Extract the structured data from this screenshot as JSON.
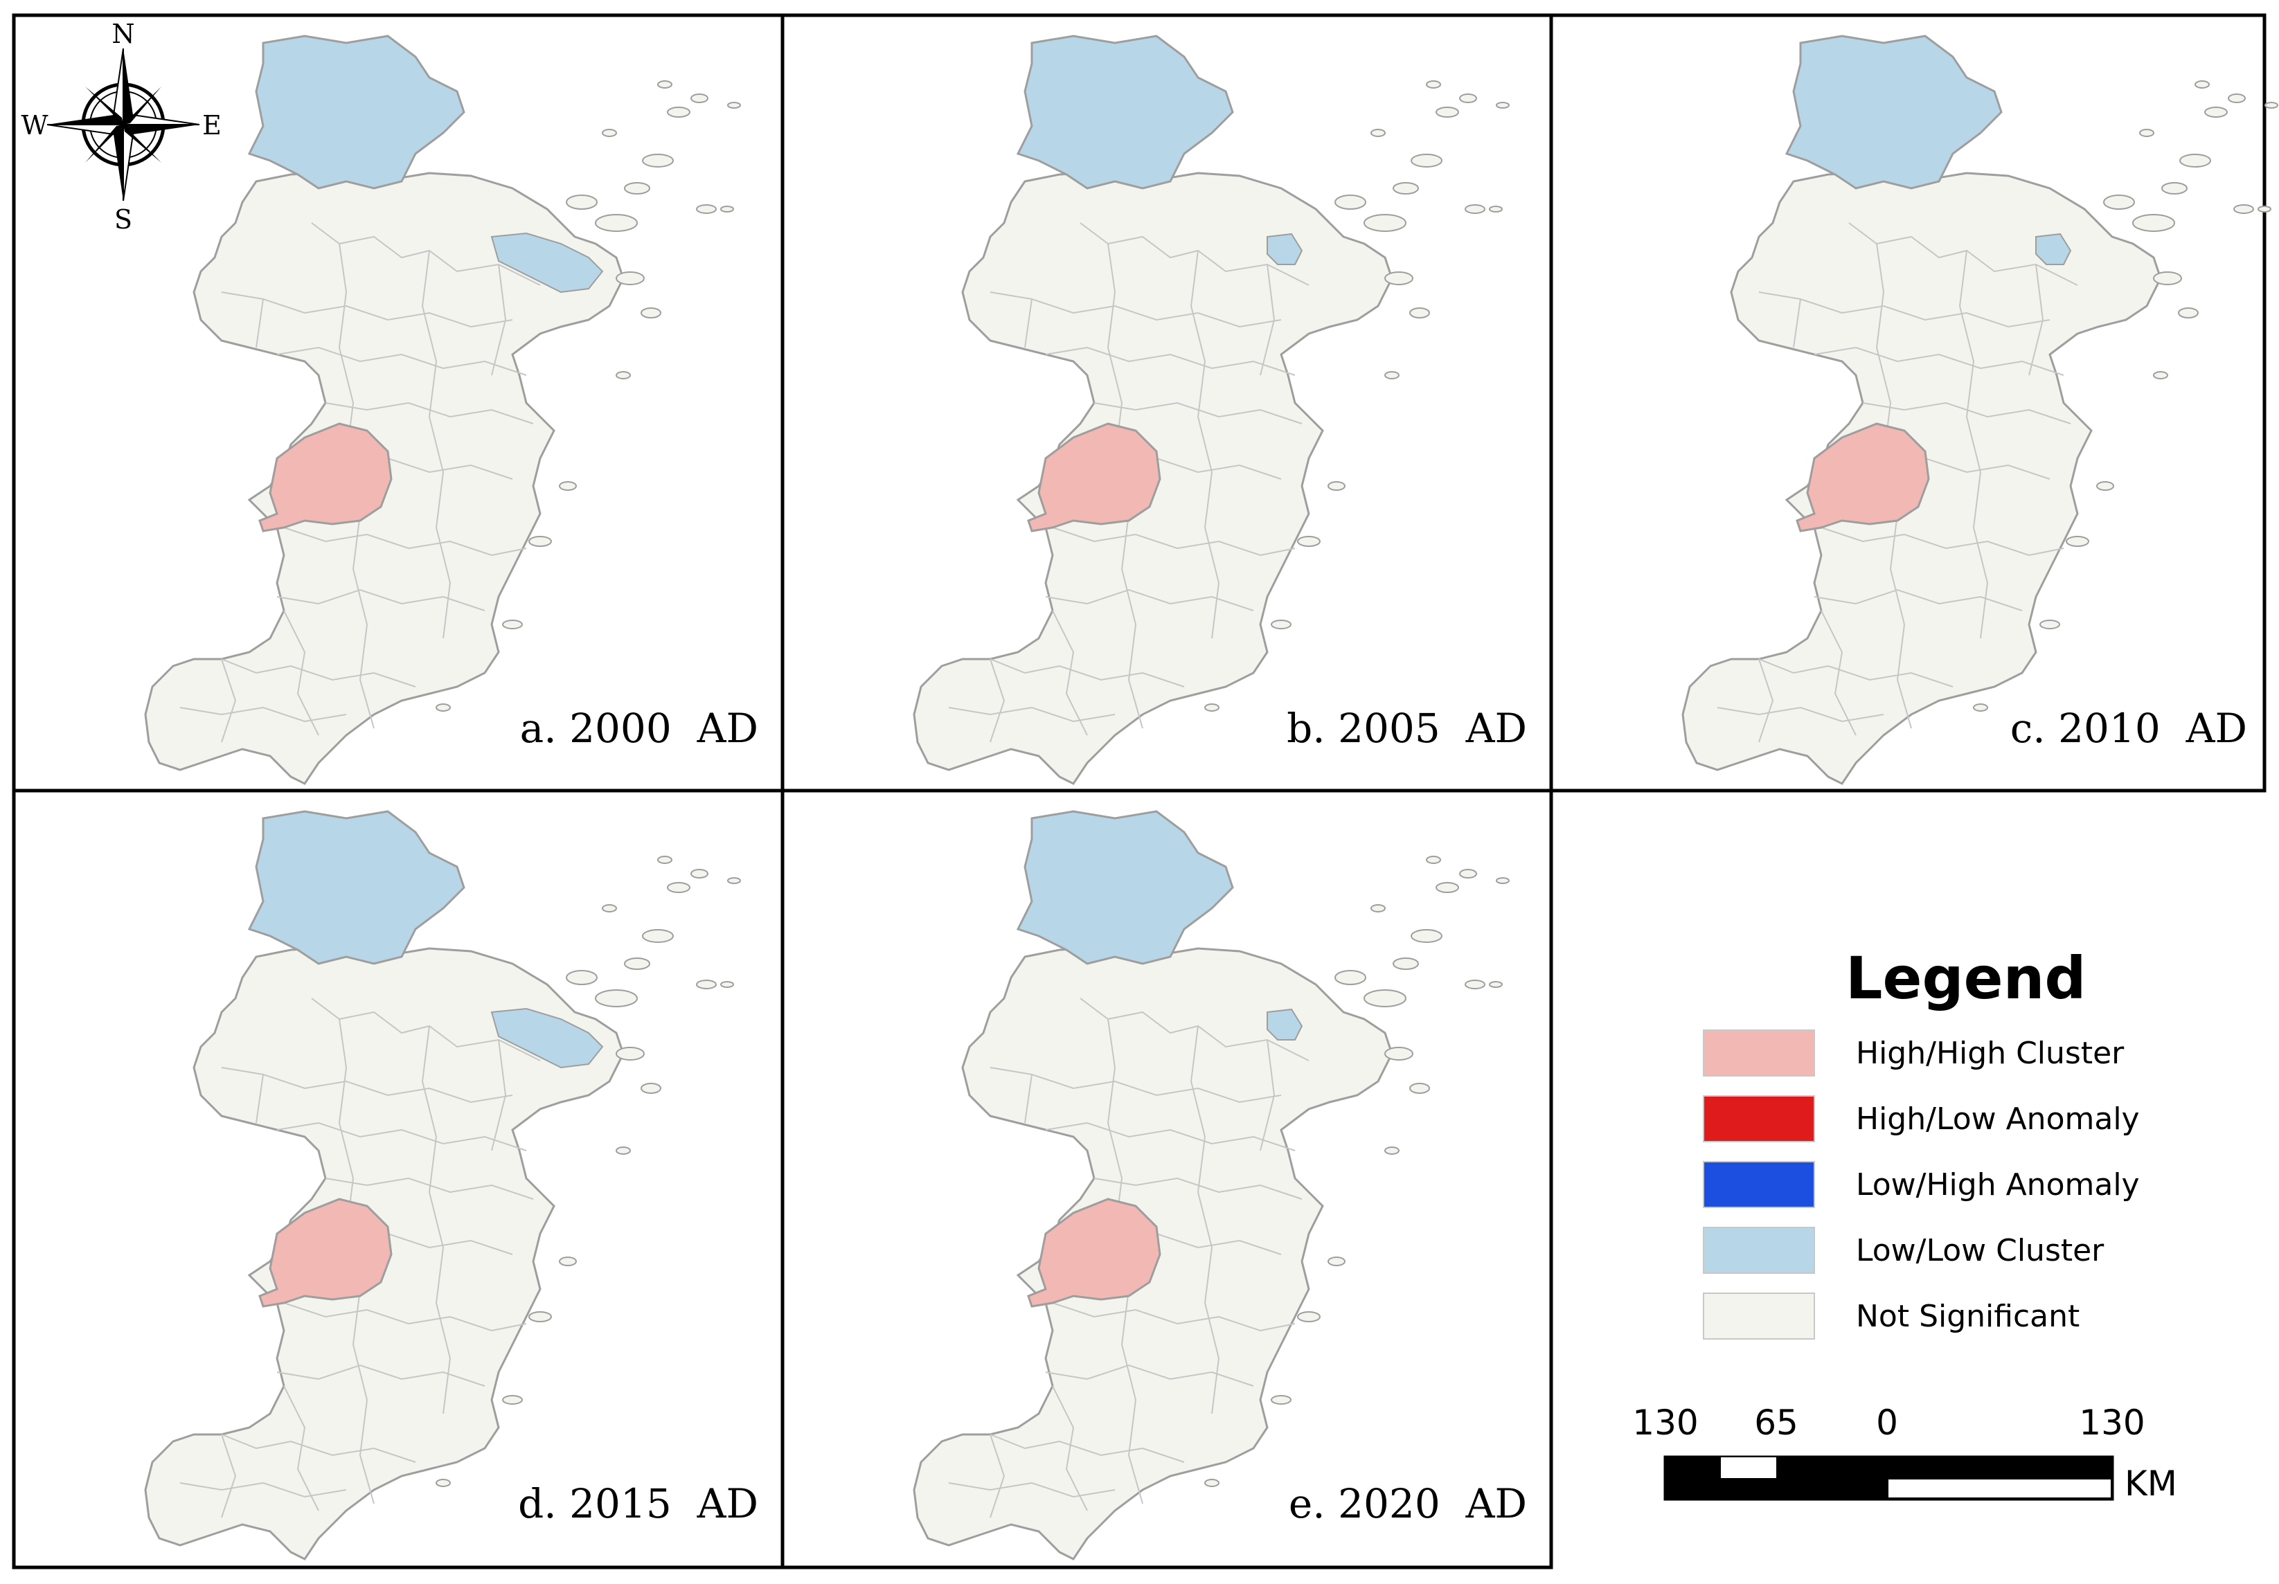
{
  "figure": {
    "panels": [
      {
        "id": "a",
        "label": "a. 2000  AD",
        "year": 2000,
        "north_lowlow": true,
        "east_unit": "Low/Low Cluster",
        "high_high_unit": "High/High Cluster"
      },
      {
        "id": "b",
        "label": "b. 2005  AD",
        "year": 2005,
        "north_lowlow": true,
        "east_unit": "Low/Low Cluster (small)",
        "high_high_unit": "High/High Cluster"
      },
      {
        "id": "c",
        "label": "c. 2010  AD",
        "year": 2010,
        "north_lowlow": true,
        "east_unit": "Low/Low Cluster (small)",
        "high_high_unit": "High/High Cluster"
      },
      {
        "id": "d",
        "label": "d. 2015  AD",
        "year": 2015,
        "north_lowlow": true,
        "east_unit": "Low/Low Cluster",
        "high_high_unit": "High/High Cluster"
      },
      {
        "id": "e",
        "label": "e. 2020  AD",
        "year": 2020,
        "north_lowlow": true,
        "east_unit": "Low/Low Cluster (small)",
        "high_high_unit": "High/High Cluster"
      }
    ],
    "compass": {
      "n": "N",
      "s": "S",
      "e": "E",
      "w": "W"
    }
  },
  "legend": {
    "title": "Legend",
    "items": [
      {
        "label": "High/High Cluster",
        "color": "#f2b8b3"
      },
      {
        "label": "High/Low Anomaly",
        "color": "#e01b1b"
      },
      {
        "label": "Low/High Anomaly",
        "color": "#1c4fe0"
      },
      {
        "label": "Low/Low Cluster",
        "color": "#b7d7e8"
      },
      {
        "label": "Not Significant",
        "color": "#f4f4ee"
      }
    ]
  },
  "scalebar": {
    "labels": [
      "130",
      "65",
      "0",
      "130"
    ],
    "unit": "KM"
  },
  "colors": {
    "not_significant": "#f4f4ee",
    "high_high": "#f2b8b3",
    "low_low": "#b7d7e8",
    "boundary": "#b9b9b9",
    "frame": "#000000"
  }
}
